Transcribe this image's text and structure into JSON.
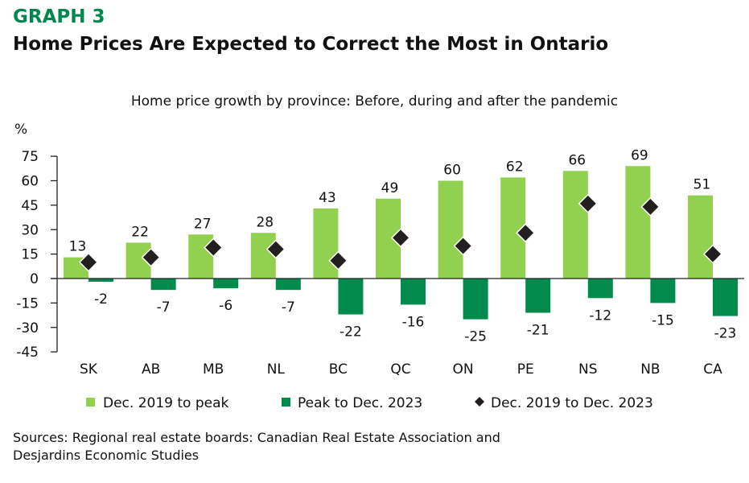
{
  "header": {
    "graph_number": "GRAPH 3",
    "title": "Home Prices Are Expected to Correct the Most in Ontario"
  },
  "footer": {
    "sources_line1": "Sources: Regional real estate boards: Canadian Real Estate Association and",
    "sources_line2": "Desjardins Economic Studies"
  },
  "chart_data": {
    "type": "bar",
    "title": "Home price growth by province: Before, during and after the pandemic",
    "ylabel": "%",
    "ylim": [
      -45,
      75
    ],
    "yticks": [
      75,
      60,
      45,
      30,
      15,
      0,
      -15,
      -30,
      -45
    ],
    "grid": false,
    "legend_position": "bottom",
    "categories": [
      "SK",
      "AB",
      "MB",
      "NL",
      "BC",
      "QC",
      "ON",
      "PE",
      "NS",
      "NB",
      "CA"
    ],
    "series": [
      {
        "name": "Dec. 2019 to peak",
        "kind": "bar",
        "color": "#92D050",
        "values": [
          13,
          22,
          27,
          28,
          43,
          49,
          60,
          62,
          66,
          69,
          51
        ],
        "labels": [
          "13",
          "22",
          "27",
          "28",
          "43",
          "49",
          "60",
          "62",
          "66",
          "69",
          "51"
        ]
      },
      {
        "name": "Peak to Dec. 2023",
        "kind": "bar",
        "color": "#008A4C",
        "values": [
          -2,
          -7,
          -6,
          -7,
          -22,
          -16,
          -25,
          -21,
          -12,
          -15,
          -23
        ],
        "labels": [
          "-2",
          "-7",
          "-6",
          "-7",
          "-22",
          "-16",
          "-25",
          "-21",
          "-12",
          "-15",
          "-23"
        ]
      },
      {
        "name": "Dec. 2019 to Dec. 2023",
        "kind": "marker",
        "marker": "diamond",
        "color": "#231F20",
        "values": [
          10,
          13,
          19,
          18,
          11,
          25,
          20,
          28,
          46,
          44,
          15
        ]
      }
    ]
  }
}
